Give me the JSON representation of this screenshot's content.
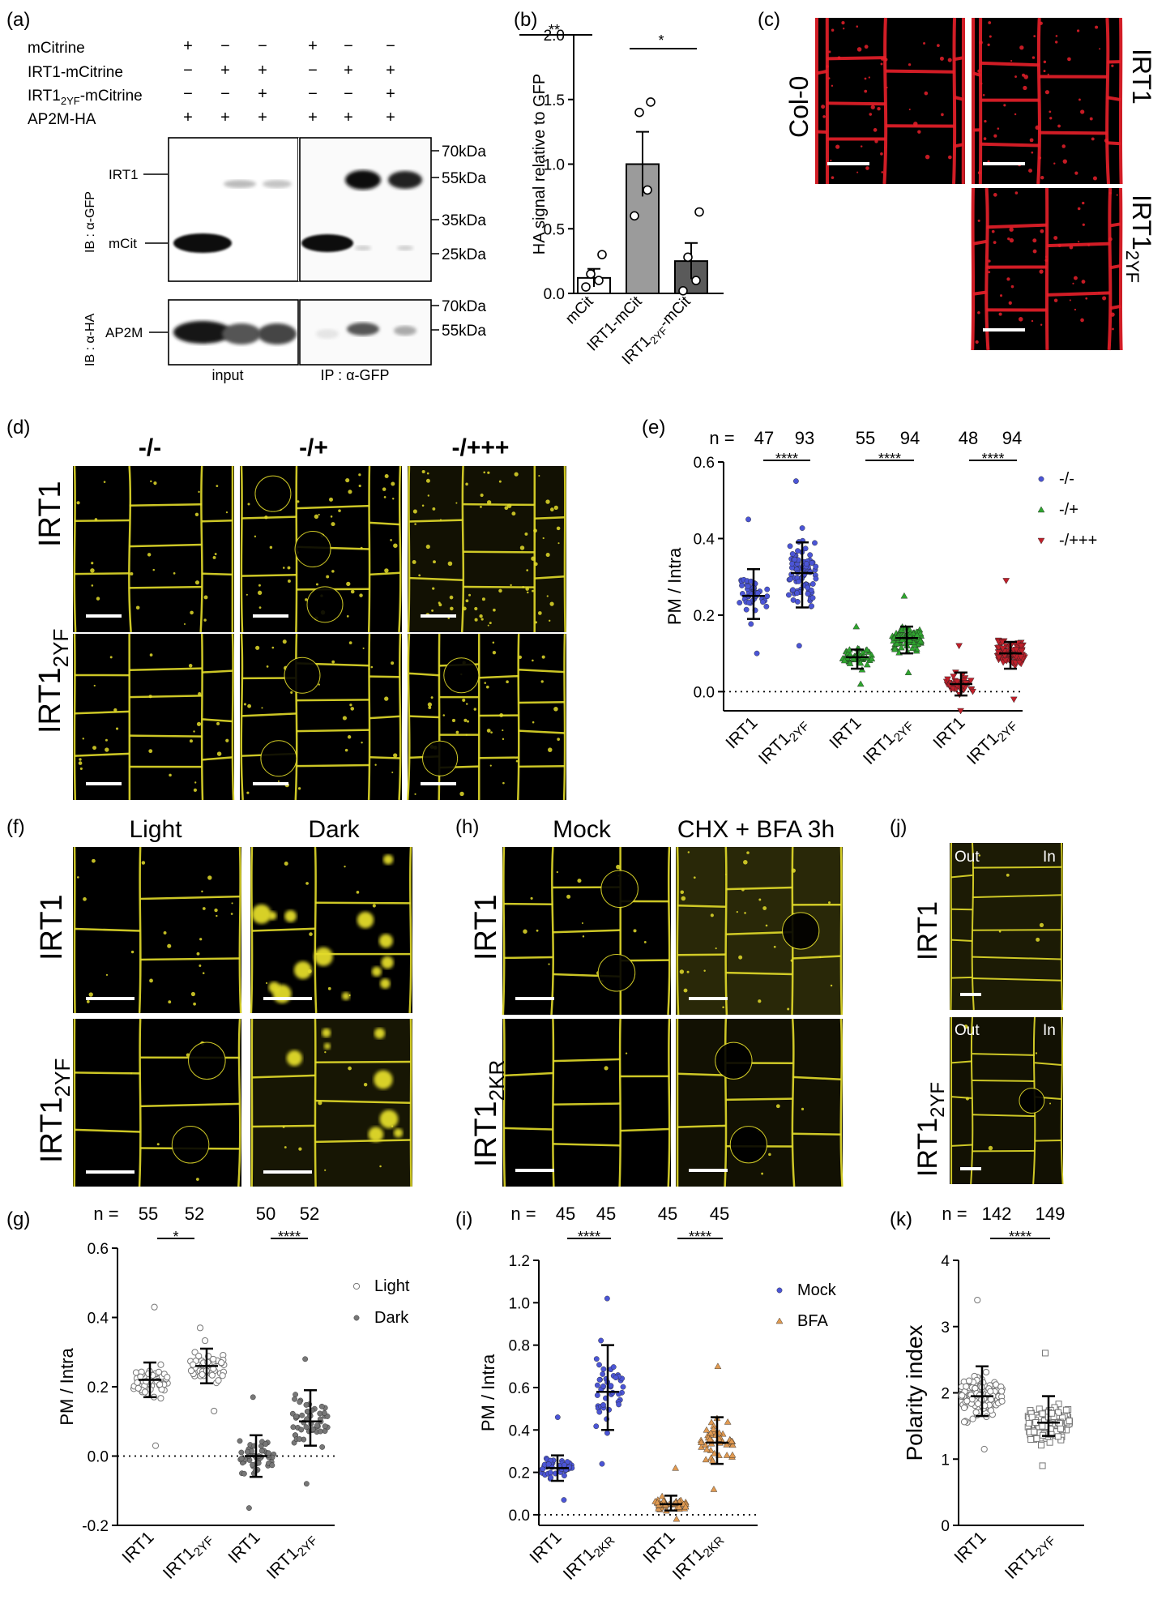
{
  "panels": {
    "a": {
      "letter": "(a)",
      "rows": [
        "mCitrine",
        "IRT1-mCitrine",
        "IRT1",
        "2YF",
        "-mCitrine",
        "AP2M-HA"
      ],
      "signs": [
        [
          "+",
          "−",
          "−",
          "+",
          "−",
          "−"
        ],
        [
          "−",
          "+",
          "+",
          "−",
          "+",
          "+"
        ],
        [
          "−",
          "−",
          "+",
          "−",
          "−",
          "+"
        ],
        [
          "+",
          "+",
          "+",
          "+",
          "+",
          "+"
        ]
      ],
      "mw": [
        "70kDa",
        "55kDa",
        "35kDa",
        "25kDa",
        "70kDa",
        "55kDa"
      ],
      "band_labels": [
        "IRT1",
        "mCit",
        "AP2M"
      ],
      "ib_labels": [
        "IB : α-GFP",
        "IB : α-HA"
      ],
      "bottom": [
        "input",
        "IP : α-GFP"
      ]
    },
    "b": {
      "letter": "(b)",
      "sig": [
        "**",
        "*"
      ],
      "xlabels": [
        "mCit",
        "IRT1-mCit",
        "IRT1",
        "2YF",
        "-mCit"
      ]
    },
    "c": {
      "letter": "(c)",
      "labels": [
        "Col-0",
        "IRT1",
        "IRT1",
        "2YF"
      ]
    },
    "d": {
      "letter": "(d)",
      "cols": [
        "-/-",
        "-/+",
        "-/+++"
      ],
      "rows": [
        "IRT1",
        "IRT1",
        "2YF"
      ]
    },
    "e": {
      "letter": "(e)",
      "n_prefix": "n =",
      "n": [
        "47",
        "93",
        "55",
        "94",
        "48",
        "94"
      ],
      "sig": "****",
      "x1": "IRT1",
      "x2": "IRT1",
      "sub": "2YF"
    },
    "f": {
      "letter": "(f)",
      "cols": [
        "Light",
        "Dark"
      ],
      "rows": [
        "IRT1",
        "IRT1",
        "2YF"
      ]
    },
    "g": {
      "letter": "(g)",
      "n_prefix": "n =",
      "n": [
        "55",
        "52",
        "50",
        "52"
      ],
      "sig": [
        "*",
        "****"
      ],
      "x1": "IRT1",
      "x2": "IRT1",
      "sub": "2YF"
    },
    "h": {
      "letter": "(h)",
      "cols": [
        "Mock",
        "CHX + BFA 3h"
      ],
      "rows": [
        "IRT1",
        "IRT1",
        "2KR"
      ]
    },
    "i": {
      "letter": "(i)",
      "n_prefix": "n =",
      "n": [
        "45",
        "45",
        "45",
        "45"
      ],
      "sig": "****",
      "x1": "IRT1",
      "x2": "IRT1",
      "sub": "2KR"
    },
    "j": {
      "letter": "(j)",
      "out": "Out",
      "in": "In",
      "rows": [
        "IRT1",
        "IRT1",
        "2YF"
      ]
    },
    "k": {
      "letter": "(k)",
      "n_prefix": "n =",
      "n": [
        "142",
        "149"
      ],
      "sig": "****",
      "x1": "IRT1",
      "x2": "IRT1",
      "sub": "2YF"
    }
  },
  "colors": {
    "blue": "#4b55d6",
    "green": "#2fa52f",
    "red": "#c01f2a",
    "orange": "#e09a52",
    "yellow": "#e3dc2a",
    "red_stain": "#e8202a"
  },
  "chart_data": [
    {
      "id": "b",
      "type": "bar",
      "categories": [
        "mCit",
        "IRT1-mCit",
        "IRT1₂YF-mCit"
      ],
      "values": [
        0.12,
        1.0,
        0.25
      ],
      "errors": [
        0.07,
        0.25,
        0.14
      ],
      "points": [
        [
          0.05,
          0.1,
          0.15,
          0.3
        ],
        [
          0.6,
          0.8,
          1.4,
          1.48
        ],
        [
          0.02,
          0.1,
          0.28,
          0.63
        ]
      ],
      "ylabel": "HA signal relative to GFP",
      "ylim": [
        0,
        2.0
      ],
      "yticks": [
        0.0,
        0.5,
        1.0,
        1.5,
        2.0
      ]
    },
    {
      "id": "e",
      "type": "scatter",
      "ylabel": "PM / Intra",
      "ylim": [
        -0.05,
        0.6
      ],
      "yticks": [
        0.0,
        0.2,
        0.4,
        0.6
      ],
      "legend": [
        "-/-",
        "-/+",
        "-/+++"
      ],
      "groups": [
        {
          "series": "-/-",
          "x": "IRT1",
          "median": 0.25,
          "q1": 0.19,
          "q3": 0.32,
          "min": 0.1,
          "max": 0.45,
          "n": 47
        },
        {
          "series": "-/-",
          "x": "IRT1₂YF",
          "median": 0.31,
          "q1": 0.22,
          "q3": 0.39,
          "min": 0.12,
          "max": 0.55,
          "n": 93
        },
        {
          "series": "-/+",
          "x": "IRT1",
          "median": 0.09,
          "q1": 0.06,
          "q3": 0.11,
          "min": 0.02,
          "max": 0.17,
          "n": 55
        },
        {
          "series": "-/+",
          "x": "IRT1₂YF",
          "median": 0.14,
          "q1": 0.1,
          "q3": 0.17,
          "min": 0.05,
          "max": 0.25,
          "n": 94
        },
        {
          "series": "-/+++",
          "x": "IRT1",
          "median": 0.02,
          "q1": -0.01,
          "q3": 0.05,
          "min": -0.05,
          "max": 0.12,
          "n": 48
        },
        {
          "series": "-/+++",
          "x": "IRT1₂YF",
          "median": 0.1,
          "q1": 0.06,
          "q3": 0.13,
          "min": -0.02,
          "max": 0.29,
          "n": 94
        }
      ]
    },
    {
      "id": "g",
      "type": "scatter",
      "ylabel": "PM / Intra",
      "ylim": [
        -0.2,
        0.6
      ],
      "yticks": [
        -0.2,
        0.0,
        0.2,
        0.4,
        0.6
      ],
      "legend": [
        "Light",
        "Dark"
      ],
      "groups": [
        {
          "series": "Light",
          "x": "IRT1",
          "median": 0.22,
          "q1": 0.17,
          "q3": 0.27,
          "min": 0.03,
          "max": 0.43,
          "n": 55
        },
        {
          "series": "Light",
          "x": "IRT1₂YF",
          "median": 0.26,
          "q1": 0.21,
          "q3": 0.31,
          "min": 0.13,
          "max": 0.37,
          "n": 52
        },
        {
          "series": "Dark",
          "x": "IRT1",
          "median": 0.0,
          "q1": -0.06,
          "q3": 0.06,
          "min": -0.15,
          "max": 0.17,
          "n": 50
        },
        {
          "series": "Dark",
          "x": "IRT1₂YF",
          "median": 0.1,
          "q1": 0.03,
          "q3": 0.19,
          "min": -0.08,
          "max": 0.28,
          "n": 52
        }
      ]
    },
    {
      "id": "i",
      "type": "scatter",
      "ylabel": "PM / Intra",
      "ylim": [
        -0.05,
        1.2
      ],
      "yticks": [
        0.0,
        0.2,
        0.4,
        0.6,
        0.8,
        1.0,
        1.2
      ],
      "legend": [
        "Mock",
        "BFA"
      ],
      "groups": [
        {
          "series": "Mock",
          "x": "IRT1",
          "median": 0.22,
          "q1": 0.16,
          "q3": 0.28,
          "min": 0.07,
          "max": 0.46,
          "n": 45
        },
        {
          "series": "Mock",
          "x": "IRT1₂KR",
          "median": 0.58,
          "q1": 0.4,
          "q3": 0.8,
          "min": 0.24,
          "max": 1.02,
          "n": 45
        },
        {
          "series": "BFA",
          "x": "IRT1",
          "median": 0.05,
          "q1": 0.02,
          "q3": 0.09,
          "min": -0.02,
          "max": 0.22,
          "n": 45
        },
        {
          "series": "BFA",
          "x": "IRT1₂KR",
          "median": 0.34,
          "q1": 0.24,
          "q3": 0.46,
          "min": 0.12,
          "max": 0.7,
          "n": 45
        }
      ]
    },
    {
      "id": "k",
      "type": "scatter",
      "ylabel": "Polarity index",
      "ylim": [
        0,
        4
      ],
      "yticks": [
        0,
        1,
        2,
        3,
        4
      ],
      "groups": [
        {
          "x": "IRT1",
          "median": 1.95,
          "q1": 1.65,
          "q3": 2.4,
          "min": 1.15,
          "max": 3.4,
          "n": 142
        },
        {
          "x": "IRT1₂YF",
          "median": 1.55,
          "q1": 1.35,
          "q3": 1.95,
          "min": 0.9,
          "max": 2.6,
          "n": 149
        }
      ]
    }
  ]
}
